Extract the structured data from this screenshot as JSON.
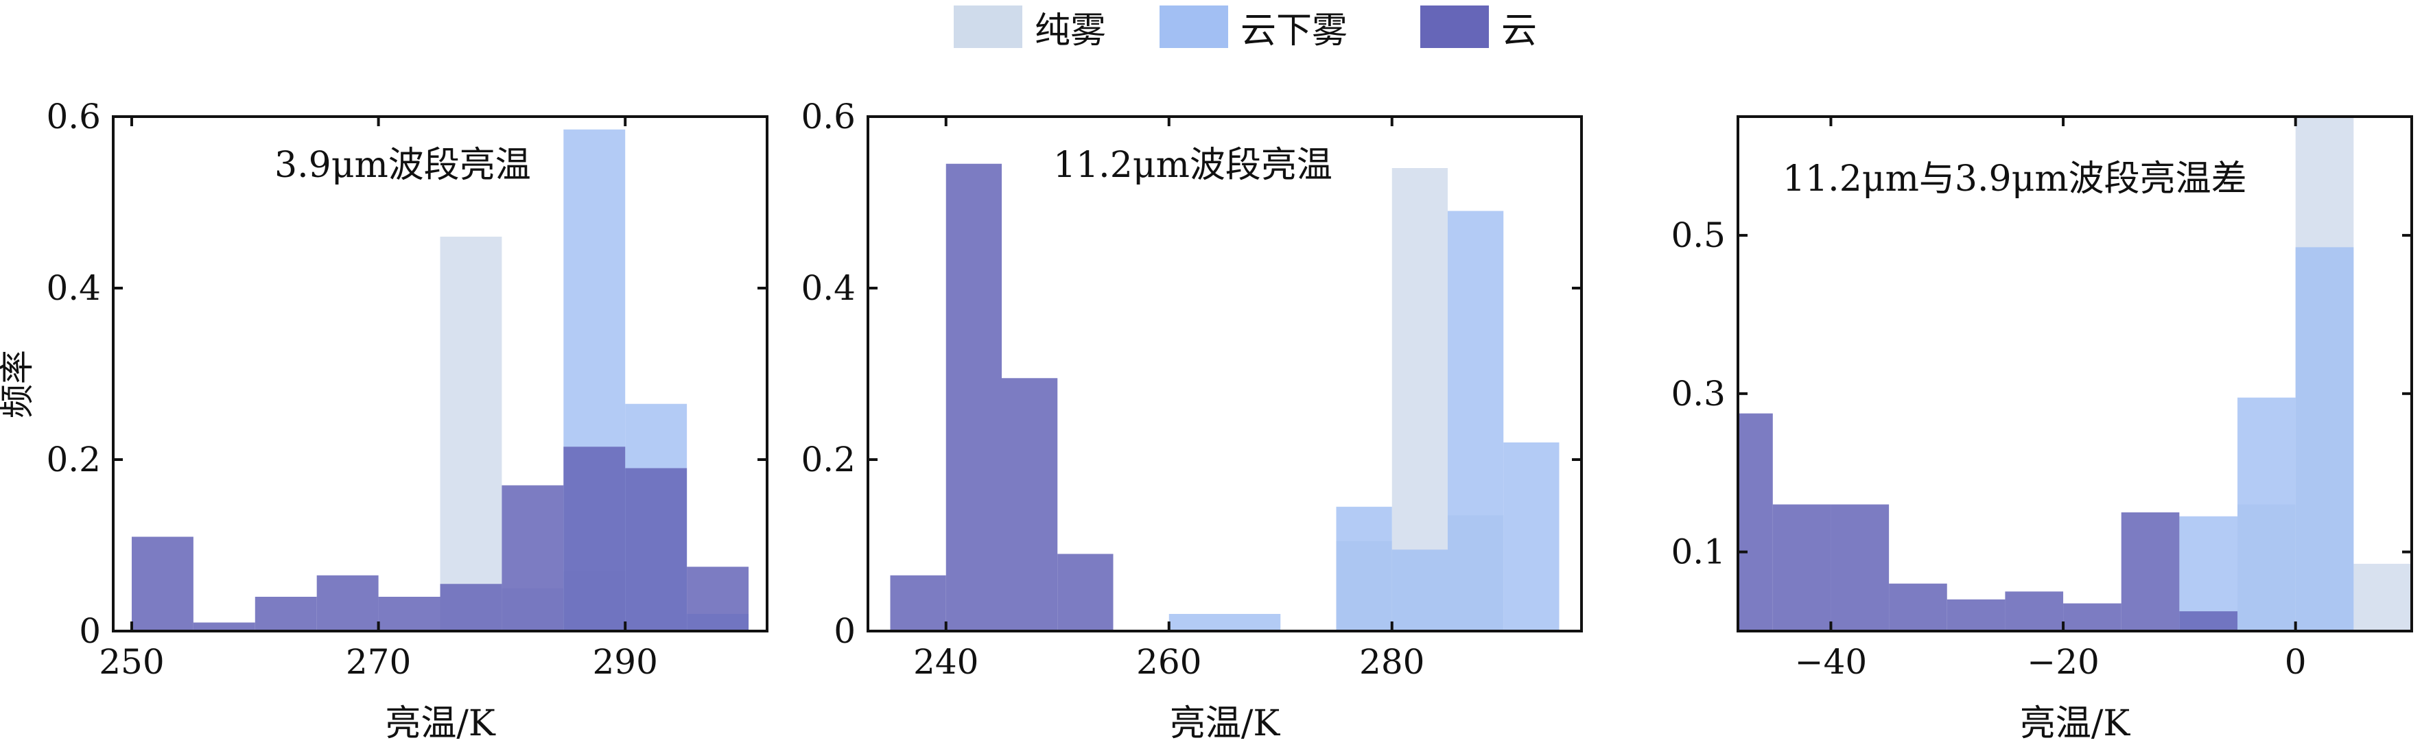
{
  "legend": {
    "placement": "top-center",
    "items": [
      {
        "label": "纯雾",
        "color": "#cfdbeb"
      },
      {
        "label": "云下雾",
        "color": "#a2bff3"
      },
      {
        "label": "云",
        "color": "#6666b8"
      }
    ]
  },
  "figure_ylabel": "频率",
  "chart_data": [
    {
      "type": "bar",
      "title": "3.9μm波段亮温",
      "xlabel": "亮温/K",
      "ylabel": "频率",
      "xlim": [
        248.5,
        301.5
      ],
      "ylim": [
        0,
        0.6
      ],
      "xticks": [
        250,
        270,
        290
      ],
      "yticks": [
        0,
        0.2,
        0.4,
        0.6
      ],
      "ytick_labels": [
        "0",
        "0.2",
        "0.4",
        "0.6"
      ],
      "bin_width": 5,
      "series": [
        {
          "name": "纯雾",
          "color": "#cfdbeb",
          "bins": [
            [
              275,
              0.46
            ],
            [
              280,
              0.05
            ],
            [
              285,
              0.07
            ],
            [
              290,
              0.0
            ]
          ]
        },
        {
          "name": "云下雾",
          "color": "#a2bff3",
          "bins": [
            [
              285,
              0.585
            ],
            [
              290,
              0.265
            ],
            [
              295,
              0.02
            ]
          ]
        },
        {
          "name": "云",
          "color": "#6666b8",
          "bins": [
            [
              250,
              0.11
            ],
            [
              255,
              0.01
            ],
            [
              260,
              0.04
            ],
            [
              265,
              0.065
            ],
            [
              270,
              0.04
            ],
            [
              275,
              0.055
            ],
            [
              280,
              0.17
            ],
            [
              285,
              0.215
            ],
            [
              290,
              0.19
            ],
            [
              295,
              0.075
            ]
          ]
        }
      ]
    },
    {
      "type": "bar",
      "title": "11.2μm波段亮温",
      "xlabel": "亮温/K",
      "ylabel": "",
      "xlim": [
        233,
        297
      ],
      "ylim": [
        0,
        0.6
      ],
      "xticks": [
        240,
        260,
        280
      ],
      "yticks": [
        0,
        0.2,
        0.4,
        0.6
      ],
      "ytick_labels": [
        "0",
        "0.2",
        "0.4",
        "0.6"
      ],
      "bin_width": 5,
      "series": [
        {
          "name": "纯雾",
          "color": "#cfdbeb",
          "bins": [
            [
              275,
              0.105
            ],
            [
              280,
              0.54
            ],
            [
              285,
              0.135
            ]
          ]
        },
        {
          "name": "云下雾",
          "color": "#a2bff3",
          "bins": [
            [
              260,
              0.02
            ],
            [
              265,
              0.02
            ],
            [
              275,
              0.145
            ],
            [
              280,
              0.095
            ],
            [
              285,
              0.49
            ],
            [
              290,
              0.22
            ]
          ]
        },
        {
          "name": "云",
          "color": "#6666b8",
          "bins": [
            [
              235,
              0.065
            ],
            [
              240,
              0.545
            ],
            [
              245,
              0.295
            ],
            [
              250,
              0.09
            ]
          ]
        }
      ]
    },
    {
      "type": "bar",
      "title": "11.2μm与3.9μm波段亮温差",
      "xlabel": "亮温/K",
      "ylabel": "",
      "xlim": [
        -48,
        10
      ],
      "ylim": [
        0,
        0.65
      ],
      "xticks": [
        -40,
        -20,
        0
      ],
      "xtick_labels": [
        "−40",
        "−20",
        "0"
      ],
      "yticks": [
        0.1,
        0.3,
        0.5
      ],
      "ytick_labels": [
        "0.1",
        "0.3",
        "0.5"
      ],
      "bin_width": 5,
      "series": [
        {
          "name": "纯雾",
          "color": "#cfdbeb",
          "bins": [
            [
              -5,
              0.16
            ],
            [
              0,
              0.65
            ],
            [
              5,
              0.085
            ]
          ]
        },
        {
          "name": "云下雾",
          "color": "#a2bff3",
          "bins": [
            [
              -10,
              0.145
            ],
            [
              -5,
              0.295
            ],
            [
              0,
              0.485
            ]
          ]
        },
        {
          "name": "云",
          "color": "#6666b8",
          "bins": [
            [
              -50,
              0.275
            ],
            [
              -45,
              0.16
            ],
            [
              -40,
              0.16
            ],
            [
              -35,
              0.06
            ],
            [
              -30,
              0.04
            ],
            [
              -25,
              0.05
            ],
            [
              -20,
              0.035
            ],
            [
              -15,
              0.15
            ],
            [
              -10,
              0.025
            ]
          ]
        }
      ]
    }
  ]
}
